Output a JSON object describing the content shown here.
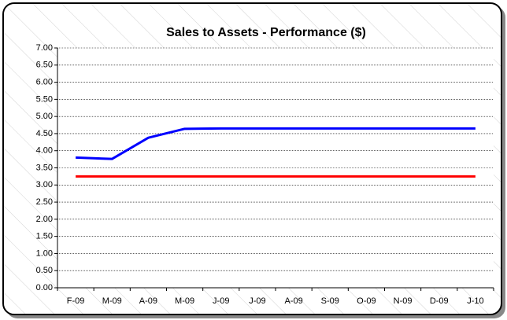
{
  "chart_data": {
    "type": "line",
    "title": "Sales to Assets - Performance ($)",
    "categories": [
      "F-09",
      "M-09",
      "A-09",
      "M-09",
      "J-09",
      "J-09",
      "A-09",
      "S-09",
      "O-09",
      "N-09",
      "D-09",
      "J-10"
    ],
    "series": [
      {
        "color": "#0000ff",
        "values": [
          3.8,
          3.76,
          4.38,
          4.64,
          4.65,
          4.65,
          4.65,
          4.65,
          4.65,
          4.65,
          4.65,
          4.65
        ]
      },
      {
        "color": "#ff0000",
        "values": [
          3.25,
          3.25,
          3.25,
          3.25,
          3.25,
          3.25,
          3.25,
          3.25,
          3.25,
          3.25,
          3.25,
          3.25
        ]
      }
    ],
    "ylim": [
      0,
      7
    ],
    "yticks": [
      {
        "value": 0,
        "label": "0.00"
      },
      {
        "value": 0.5,
        "label": "0.50"
      },
      {
        "value": 1,
        "label": "1.00"
      },
      {
        "value": 1.5,
        "label": "1.50"
      },
      {
        "value": 2,
        "label": "2.00"
      },
      {
        "value": 2.5,
        "label": "2.50"
      },
      {
        "value": 3,
        "label": "3.00"
      },
      {
        "value": 3.5,
        "label": "3.50"
      },
      {
        "value": 4,
        "label": "4.00"
      },
      {
        "value": 4.5,
        "label": "4.50"
      },
      {
        "value": 5,
        "label": "5.00"
      },
      {
        "value": 5.5,
        "label": "5.50"
      },
      {
        "value": 6,
        "label": "6.00"
      },
      {
        "value": 6.5,
        "label": "6.50"
      },
      {
        "value": 7,
        "label": "7.00"
      }
    ],
    "grid": true
  }
}
